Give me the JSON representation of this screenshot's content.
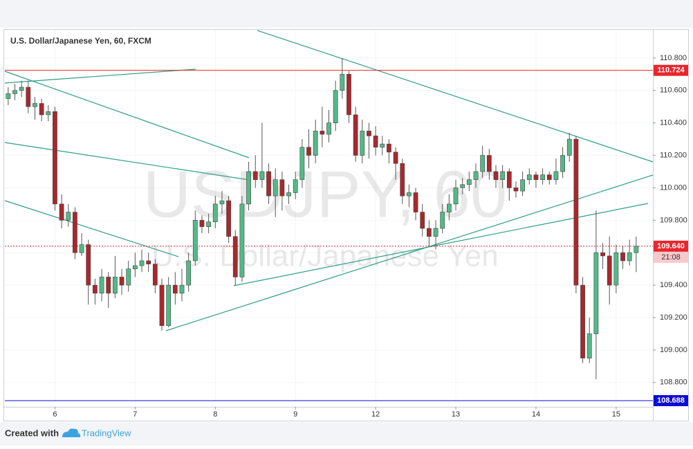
{
  "chart_data": {
    "type": "candlestick",
    "title": "U.S. Dollar/Japanese Yen, 60, FXCM",
    "watermark": "USDJPY, 60",
    "watermark_subtitle": "U.S. Dollar/Japanese Yen",
    "up_color": "#53b987",
    "down_color": "#a8282c",
    "grid": true,
    "categories": [
      null,
      null,
      null,
      null,
      null,
      null,
      null,
      "6",
      null,
      null,
      null,
      null,
      null,
      null,
      null,
      null,
      null,
      null,
      null,
      "7",
      null,
      null,
      null,
      null,
      null,
      null,
      null,
      null,
      null,
      null,
      null,
      "8",
      null,
      null,
      null,
      null,
      null,
      null,
      null,
      null,
      null,
      null,
      null,
      "9",
      null,
      null,
      null,
      null,
      null,
      null,
      null,
      null,
      null,
      null,
      null,
      "12",
      null,
      null,
      null,
      null,
      null,
      null,
      null,
      null,
      null,
      null,
      null,
      "13",
      null,
      null,
      null,
      null,
      null,
      null,
      null,
      null,
      null,
      null,
      null,
      "14",
      null,
      null,
      null,
      null,
      null,
      null,
      null,
      null,
      null,
      null,
      null,
      "15",
      null,
      null,
      null,
      null,
      null
    ],
    "open": [
      110.55,
      110.58,
      110.6,
      110.62,
      110.5,
      110.52,
      110.45,
      110.47,
      109.9,
      109.8,
      109.85,
      109.6,
      109.65,
      109.4,
      109.35,
      109.45,
      109.35,
      109.45,
      109.4,
      109.5,
      109.52,
      109.55,
      109.53,
      109.4,
      109.15,
      109.4,
      109.35,
      109.4,
      109.55,
      109.8,
      109.76,
      109.79,
      109.9,
      109.92,
      109.7,
      109.45,
      109.9,
      110.1,
      110.05,
      110.1,
      109.95,
      110.05,
      109.95,
      109.97,
      110.05,
      110.25,
      110.2,
      110.35,
      110.33,
      110.4,
      110.6,
      110.7,
      110.45,
      110.2,
      110.35,
      110.32,
      110.25,
      110.27,
      110.22,
      110.15,
      109.95,
      109.97,
      109.85,
      109.75,
      109.7,
      109.75,
      109.85,
      109.9,
      110.0,
      110.02,
      110.05,
      110.1,
      110.2,
      110.1,
      110.05,
      110.1,
      110.0,
      109.98,
      110.05,
      110.08,
      110.05,
      110.08,
      110.05,
      110.1,
      110.2,
      110.3,
      109.4,
      108.95,
      109.1,
      109.6,
      109.58,
      109.4,
      109.6,
      109.55,
      109.6,
      null,
      null
    ],
    "high": [
      110.62,
      110.64,
      110.66,
      110.66,
      110.56,
      110.55,
      110.51,
      110.5,
      109.96,
      109.9,
      109.88,
      109.72,
      109.68,
      109.44,
      109.5,
      109.48,
      109.58,
      109.5,
      109.55,
      109.6,
      109.62,
      109.6,
      109.56,
      109.44,
      109.45,
      109.48,
      109.5,
      109.6,
      109.86,
      109.83,
      109.84,
      109.95,
      109.98,
      109.95,
      109.74,
      109.95,
      110.16,
      110.2,
      110.4,
      110.15,
      110.12,
      110.1,
      110.02,
      110.1,
      110.3,
      110.36,
      110.42,
      110.5,
      110.48,
      110.66,
      110.8,
      110.72,
      110.5,
      110.42,
      110.4,
      110.38,
      110.32,
      110.3,
      110.25,
      110.18,
      110.02,
      110.0,
      109.9,
      109.8,
      109.8,
      109.9,
      109.96,
      110.05,
      110.06,
      110.1,
      110.15,
      110.26,
      110.24,
      110.14,
      110.14,
      110.12,
      110.04,
      110.1,
      110.12,
      110.1,
      110.12,
      110.1,
      110.18,
      110.25,
      110.34,
      110.32,
      109.45,
      109.2,
      109.86,
      109.66,
      109.7,
      109.65,
      109.64,
      109.68,
      109.7,
      null,
      null
    ],
    "low": [
      110.51,
      110.54,
      110.56,
      110.46,
      110.42,
      110.41,
      110.41,
      109.86,
      109.75,
      109.76,
      109.56,
      109.58,
      109.28,
      109.28,
      109.3,
      109.26,
      109.32,
      109.34,
      109.36,
      109.45,
      109.48,
      109.48,
      109.35,
      109.12,
      109.14,
      109.28,
      109.3,
      109.36,
      109.52,
      109.72,
      109.72,
      109.75,
      109.84,
      109.66,
      109.4,
      109.42,
      109.86,
      110.0,
      110.0,
      109.9,
      109.82,
      109.86,
      109.9,
      109.93,
      110.0,
      110.12,
      110.15,
      110.25,
      110.28,
      110.35,
      110.55,
      110.4,
      110.16,
      110.15,
      110.18,
      110.2,
      110.2,
      110.15,
      110.05,
      109.9,
      109.88,
      109.8,
      109.7,
      109.64,
      109.62,
      109.72,
      109.8,
      109.86,
      109.96,
      109.98,
      110.0,
      110.06,
      110.05,
      110.0,
      110.0,
      109.92,
      109.94,
      109.95,
      110.02,
      110.0,
      110.02,
      110.02,
      110.02,
      110.06,
      110.16,
      109.35,
      108.92,
      108.92,
      108.82,
      109.5,
      109.28,
      109.35,
      109.5,
      109.52,
      109.48,
      null,
      null
    ],
    "close": [
      110.58,
      110.6,
      110.62,
      110.5,
      110.52,
      110.45,
      110.47,
      109.9,
      109.8,
      109.85,
      109.6,
      109.65,
      109.4,
      109.35,
      109.45,
      109.35,
      109.45,
      109.4,
      109.5,
      109.52,
      109.55,
      109.53,
      109.4,
      109.15,
      109.4,
      109.35,
      109.4,
      109.55,
      109.8,
      109.76,
      109.79,
      109.9,
      109.92,
      109.7,
      109.45,
      109.9,
      110.1,
      110.05,
      110.1,
      109.95,
      110.05,
      109.95,
      109.97,
      110.05,
      110.25,
      110.2,
      110.35,
      110.33,
      110.4,
      110.6,
      110.7,
      110.45,
      110.2,
      110.35,
      110.32,
      110.25,
      110.27,
      110.22,
      110.15,
      109.95,
      109.97,
      109.85,
      109.75,
      109.7,
      109.75,
      109.85,
      109.9,
      110.0,
      110.02,
      110.05,
      110.1,
      110.2,
      110.1,
      110.05,
      110.1,
      110.0,
      109.98,
      110.05,
      110.08,
      110.05,
      110.08,
      110.05,
      110.1,
      110.2,
      110.3,
      109.4,
      108.95,
      109.1,
      109.6,
      109.58,
      109.4,
      109.6,
      109.55,
      109.6,
      109.64,
      null,
      null
    ],
    "ylim": [
      108.65,
      110.97
    ],
    "yticks": [
      {
        "value": 108.8,
        "label": "108.800"
      },
      {
        "value": 109.0,
        "label": "109.000"
      },
      {
        "value": 109.2,
        "label": "109.200"
      },
      {
        "value": 109.4,
        "label": "109.400"
      },
      {
        "value": 109.6,
        "label": "109.600"
      },
      {
        "value": 109.8,
        "label": "109.800"
      },
      {
        "value": 110.0,
        "label": "110.000"
      },
      {
        "value": 110.2,
        "label": "110.200"
      },
      {
        "value": 110.4,
        "label": "110.400"
      },
      {
        "value": 110.6,
        "label": "110.600"
      },
      {
        "value": 110.8,
        "label": "110.800"
      }
    ],
    "price_lines": [
      {
        "value": 110.724,
        "label": "110.724",
        "color": "#e8262d"
      },
      {
        "value": 108.688,
        "label": "108.688",
        "color": "#0b0bd6"
      }
    ],
    "last_price": {
      "value": 109.64,
      "label": "109.640",
      "color": "#e8262d"
    },
    "countdown": "21:08",
    "footer": {
      "created_with": "Created with",
      "brand": "TradingView"
    }
  }
}
